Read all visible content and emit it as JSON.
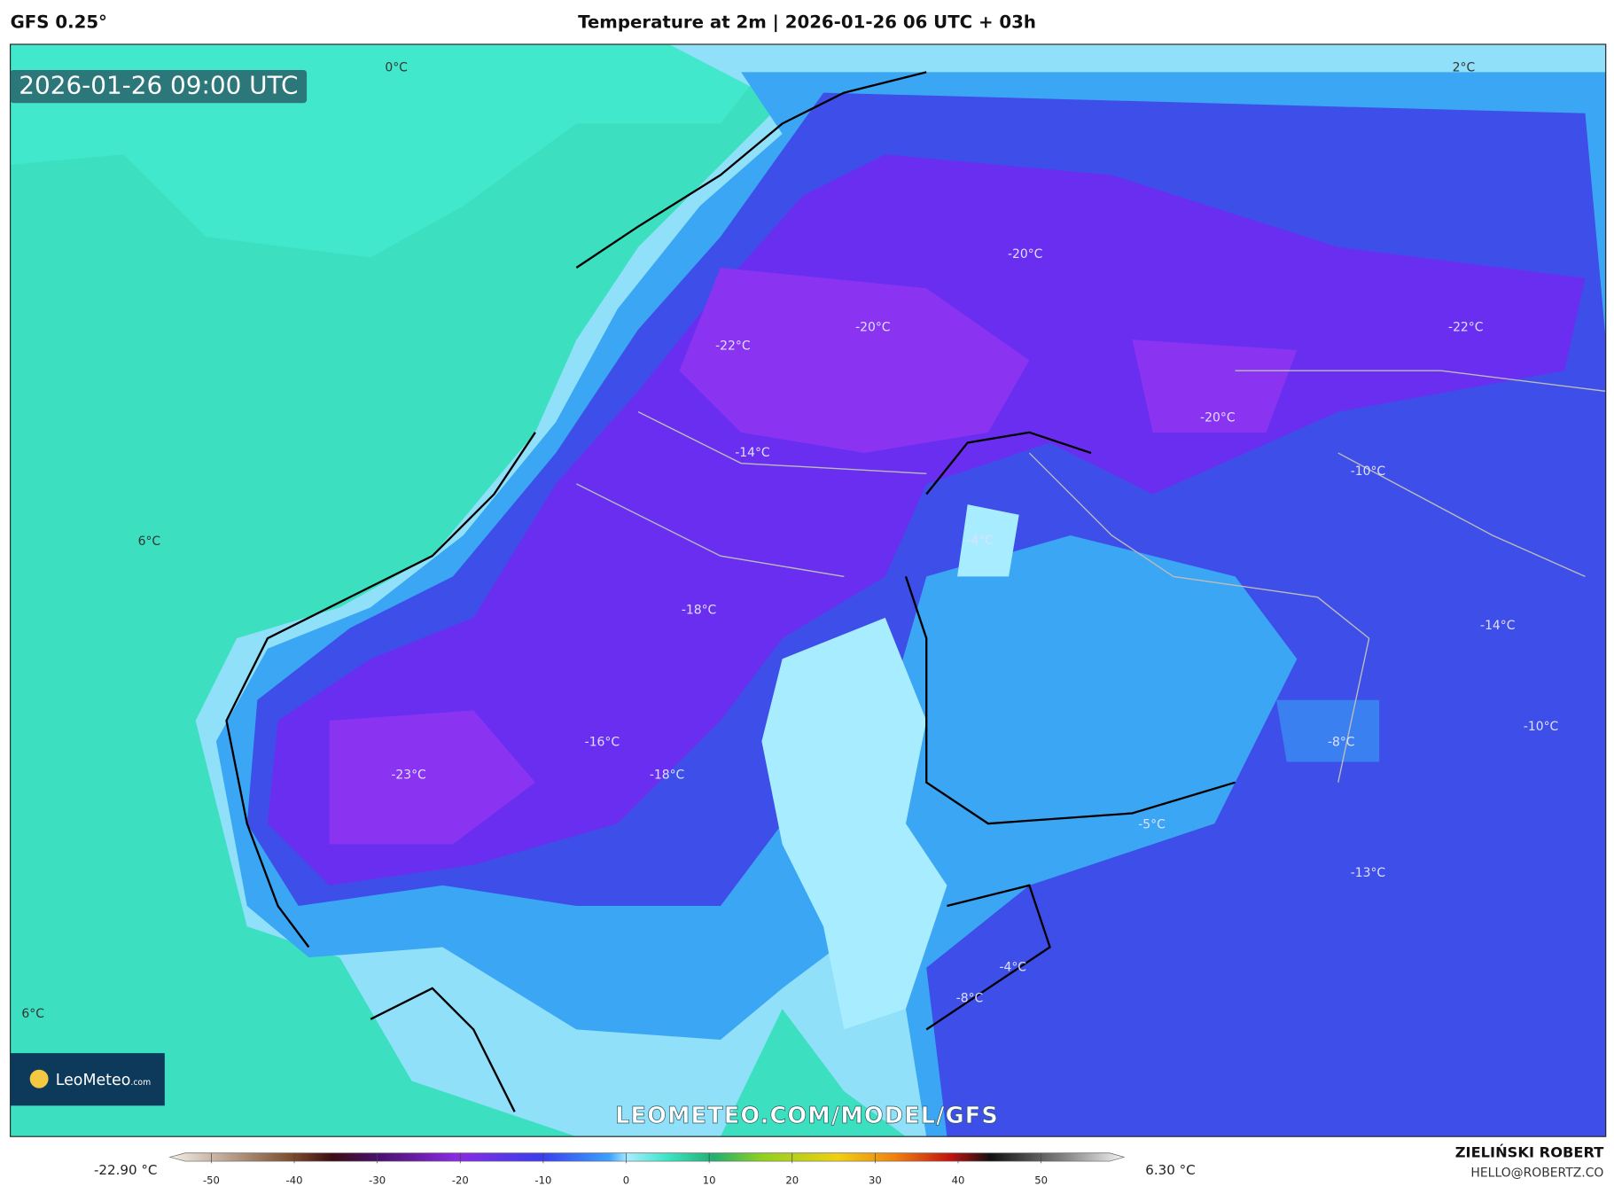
{
  "header": {
    "model": "GFS 0.25°",
    "title": "Temperature at 2m | 2026-01-26 06 UTC + 03h"
  },
  "timestamp": "2026-01-26 09:00 UTC",
  "map": {
    "contour_labels": [
      "0°C",
      "2°C",
      "6°C",
      "6°C",
      "-20°C",
      "-20°C",
      "-22°C",
      "-22°C",
      "-20°C",
      "-14°C",
      "-10°C",
      "-4°C",
      "-18°C",
      "-14°C",
      "-16°C",
      "-18°C",
      "-23°C",
      "-8°C",
      "-10°C",
      "-5°C",
      "-13°C",
      "-4°C",
      "-8°C"
    ]
  },
  "watermark": "LEOMETEO.COM/MODEL/GFS",
  "logo": {
    "name": "LeoMeteo",
    "suffix": ".com"
  },
  "colorbar": {
    "range": [
      -55,
      60
    ],
    "ticks": [
      -50,
      -40,
      -30,
      -20,
      -10,
      0,
      10,
      20,
      30,
      40,
      50
    ],
    "min_label": "-22.90 °C",
    "max_label": "6.30 °C"
  },
  "credit": {
    "name": "ZIELIŃSKI ROBERT",
    "email": "HELLO@ROBERTZ.CO"
  }
}
